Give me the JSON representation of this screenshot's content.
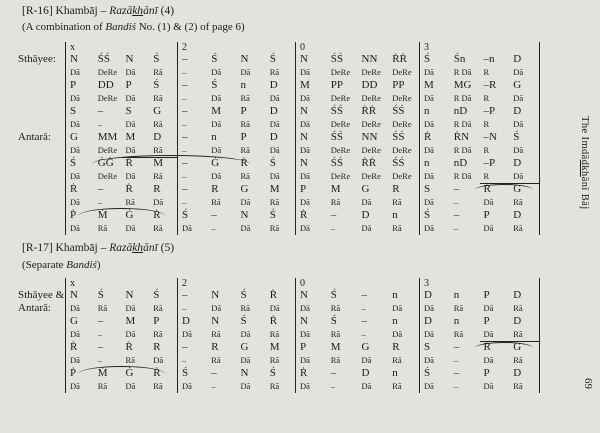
{
  "page": {
    "bg": "#e4e2dd",
    "ink": "#1c1c1c",
    "number": "69"
  },
  "sidebar": {
    "pre": "The Imdā",
    "kh": "dkh",
    "post": "ānī Bāj"
  },
  "ticks": [
    "x",
    "2",
    "0",
    "3"
  ],
  "headers": [
    {
      "prefix": "[R-16] Khambāj – ",
      "it1": "Razā",
      "kh": "kh",
      "it2": "ānī",
      "suffix": " (4)",
      "sub_pre": "(A combination of ",
      "sub_it": "Bandiś",
      "sub_post": " No. (1) & (2) of page 6)"
    },
    {
      "prefix": "[R-17] Khambāj – ",
      "it1": "Razā",
      "kh": "kh",
      "it2": "ānī",
      "suffix": " (5)",
      "sub_pre": "(Separate ",
      "sub_it": "Bandiś",
      "sub_post": ")"
    }
  ],
  "tables": [
    {
      "label_sthayee": "Sthāyee:",
      "label_antara": "Antarā:",
      "rows": [
        {
          "size": "big",
          "cells": [
            [
              "N",
              "ŚŚ",
              "N",
              "Ś"
            ],
            [
              "–",
              "Ś",
              "N",
              "Ś"
            ],
            [
              "N",
              "ŚŚ",
              "NN",
              "ṘṘ"
            ],
            [
              "Ś",
              "Śn",
              "–n",
              "D"
            ]
          ]
        },
        {
          "size": "small",
          "cells": [
            [
              "Dā",
              "DeRe",
              "Dā",
              "Rā"
            ],
            [
              "–",
              "Dā",
              "Dā",
              "Rā"
            ],
            [
              "Dā",
              "DeRe",
              "DeRe",
              "DeRe"
            ],
            [
              "Dā",
              "R Dā",
              "R",
              "Dā"
            ]
          ]
        },
        {
          "size": "big",
          "cells": [
            [
              "P",
              "DD",
              "P",
              "Ś"
            ],
            [
              "–",
              "Ś",
              "n",
              "D"
            ],
            [
              "M",
              "PP",
              "DD",
              "PP"
            ],
            [
              "M",
              "MG",
              "–R",
              "G"
            ]
          ]
        },
        {
          "size": "small",
          "cells": [
            [
              "Dā",
              "DeRe",
              "Dā",
              "Rā"
            ],
            [
              "–",
              "Dā",
              "Rā",
              "Dā"
            ],
            [
              "Dā",
              "DeRe",
              "DeRe",
              "DeRe"
            ],
            [
              "Dā",
              "R Dā",
              "R",
              "Dā"
            ]
          ]
        },
        {
          "size": "big",
          "cells": [
            [
              "S",
              "–",
              "S",
              "G"
            ],
            [
              "–",
              "M",
              "P",
              "D"
            ],
            [
              "N",
              "ŚŚ",
              "ṘṘ",
              "ŚŚ"
            ],
            [
              "n",
              "nD",
              "–P",
              "D"
            ]
          ]
        },
        {
          "size": "small",
          "cells": [
            [
              "Dā",
              "–",
              "Dā",
              "Rā"
            ],
            [
              "–",
              "Dā",
              "Rā",
              "Dā"
            ],
            [
              "Dā",
              "DeRe",
              "DeRe",
              "DeRe"
            ],
            [
              "Dā",
              "R Dā",
              "R",
              "Dā"
            ]
          ]
        },
        {
          "size": "big",
          "cells": [
            [
              "G",
              "MM",
              "M",
              "D"
            ],
            [
              "–",
              "n",
              "P",
              "D"
            ],
            [
              "N",
              "ŚŚ",
              "NN",
              "ŚŚ"
            ],
            [
              "Ṙ",
              "ṘN",
              "–N",
              "Ś"
            ]
          ]
        },
        {
          "size": "small",
          "cells": [
            [
              "Dā",
              "DeRe",
              {
                "t": "Dā",
                "u": 1
              },
              {
                "t": "Rā",
                "u": 1
              }
            ],
            [
              "–",
              "Dā",
              "Rā",
              "Dā"
            ],
            [
              "Dā",
              "DeRe",
              "DeRe",
              "DeRe"
            ],
            [
              "Dā",
              "R Dā",
              "R",
              "Dā"
            ]
          ]
        },
        {
          "size": "big",
          "cells": [
            [
              "Ś",
              "ĠĠ",
              "Ṙ",
              "Ṁ"
            ],
            [
              "–",
              "Ġ",
              "Ṙ",
              "Ś"
            ],
            [
              "N",
              "ŚŚ",
              "ṘṘ",
              "ŚŚ"
            ],
            [
              "n",
              "nD",
              "–P",
              "D"
            ]
          ]
        },
        {
          "size": "small",
          "cells": [
            [
              "Dā",
              "DeRe",
              "Dā",
              "Rā"
            ],
            [
              "–",
              "Dā",
              "Rā",
              "Dā"
            ],
            [
              "Dā",
              "DeRe",
              "DeRe",
              "DeRe"
            ],
            [
              "Dā",
              "R Dā",
              {
                "t": "R",
                "u": 1
              },
              {
                "t": "Dā",
                "u": 1
              }
            ]
          ]
        },
        {
          "size": "big",
          "cells": [
            [
              "Ṙ",
              "–",
              "Ṙ",
              "R"
            ],
            [
              "–",
              "R",
              "G",
              "M"
            ],
            [
              "P",
              "M",
              "G",
              "R"
            ],
            [
              "S",
              "–",
              "Ṙ",
              "Ġ"
            ]
          ]
        },
        {
          "size": "small",
          "cells": [
            [
              "Dā",
              "–",
              "Rā",
              "Dā"
            ],
            [
              "–",
              "Rā",
              "Dā",
              "Rā"
            ],
            [
              "Dā",
              "Rā",
              "Dā",
              "Rā"
            ],
            [
              "Dā",
              "–",
              "Dā",
              "Rā"
            ]
          ]
        },
        {
          "size": "big",
          "cells": [
            [
              "Ṗ",
              "Ṁ",
              "Ġ",
              "Ṙ"
            ],
            [
              "Ś",
              "–",
              "N",
              "Ś"
            ],
            [
              "Ṙ",
              "–",
              "D",
              "n"
            ],
            [
              "Ś",
              "–",
              "P",
              "D"
            ]
          ]
        },
        {
          "size": "small",
          "cells": [
            [
              "Dā",
              "Rā",
              "Dā",
              "Rā"
            ],
            [
              "Dā",
              "–",
              "Dā",
              "Rā"
            ],
            [
              "Dā",
              "–",
              "Dā",
              "Rā"
            ],
            [
              "Dā",
              "–",
              "Dā",
              "Rā"
            ]
          ]
        }
      ]
    },
    {
      "label_sthayee": "Sthāyee &",
      "label_antara": "Antarā:",
      "rows": [
        {
          "size": "big",
          "cells": [
            [
              "N",
              "Ś",
              "N",
              "Ś"
            ],
            [
              "–",
              "N",
              "Ś",
              "Ṙ"
            ],
            [
              "N",
              "Ś",
              "–",
              "n"
            ],
            [
              "D",
              "n",
              "P",
              "D"
            ]
          ]
        },
        {
          "size": "small",
          "cells": [
            [
              "Dā",
              "Rā",
              "Dā",
              "Rā"
            ],
            [
              "–",
              "Dā",
              "Rā",
              "Dā"
            ],
            [
              "Dā",
              "Rā",
              "–",
              "Dā"
            ],
            [
              "Dā",
              "Rā",
              "Dā",
              "Rā"
            ]
          ]
        },
        {
          "size": "big",
          "cells": [
            [
              "G",
              "–",
              "M",
              "P"
            ],
            [
              "D",
              "N",
              "Ś",
              "Ṙ"
            ],
            [
              "N",
              "Ś",
              "–",
              "n"
            ],
            [
              "D",
              "n",
              "P",
              "D"
            ]
          ]
        },
        {
          "size": "small",
          "cells": [
            [
              "Dā",
              "–",
              "Dā",
              "Rā"
            ],
            [
              "Dā",
              "Rā",
              "Dā",
              "Rā"
            ],
            [
              "Dā",
              "Rā",
              "–",
              "Dā"
            ],
            [
              "Dā",
              "Rā",
              {
                "t": "Dā",
                "u": 1
              },
              {
                "t": "Rā",
                "u": 1
              }
            ]
          ]
        },
        {
          "size": "big",
          "cells": [
            [
              "Ṙ",
              "–",
              "Ṙ",
              "R"
            ],
            [
              "–",
              "R",
              "G",
              "M"
            ],
            [
              "P",
              "M",
              "G",
              "R"
            ],
            [
              "S",
              "–",
              "Ṙ",
              "Ġ"
            ]
          ]
        },
        {
          "size": "small",
          "cells": [
            [
              "Dā",
              "–",
              "Rā",
              "Dā"
            ],
            [
              "–",
              "Rā",
              "Dā",
              "Rā"
            ],
            [
              "Dā",
              "Rā",
              "Dā",
              "Rā"
            ],
            [
              "Dā",
              "–",
              "Dā",
              "Rā"
            ]
          ]
        },
        {
          "size": "big",
          "cells": [
            [
              "Ṗ",
              "Ṁ",
              "Ġ",
              "Ṙ"
            ],
            [
              "Ś",
              "–",
              "N",
              "Ś"
            ],
            [
              "Ṙ",
              "–",
              "D",
              "n"
            ],
            [
              "Ś",
              "–",
              "P",
              "D"
            ]
          ]
        },
        {
          "size": "small",
          "cells": [
            [
              "Dā",
              "Rā",
              "Dā",
              "Rā"
            ],
            [
              "Dā",
              "–",
              "Dā",
              "Rā"
            ],
            [
              "Dā",
              "–",
              "Dā",
              "Rā"
            ],
            [
              "Dā",
              "–",
              "Dā",
              "Rā"
            ]
          ]
        }
      ]
    }
  ]
}
